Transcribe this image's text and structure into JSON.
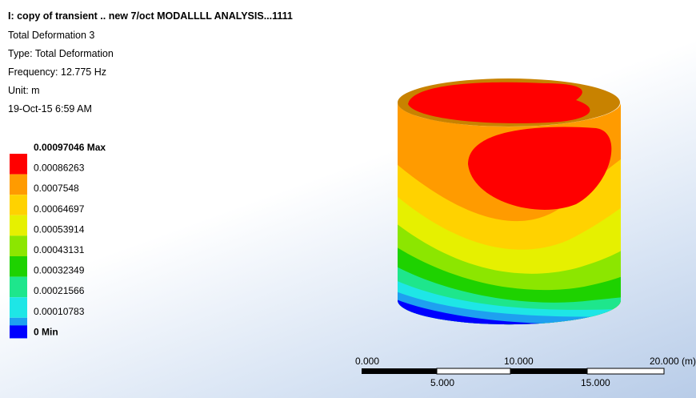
{
  "header": {
    "title": "I: copy of transient .. new 7/oct MODALLLL ANALYSIS...1111",
    "lines": [
      "Total Deformation 3",
      "Type: Total Deformation",
      "Frequency: 12.775 Hz",
      "Unit: m",
      "19-Oct-15 6:59 AM"
    ]
  },
  "legend": {
    "labels": [
      "0.00097046 Max",
      "0.00086263",
      "0.0007548",
      "0.00064697",
      "0.00053914",
      "0.00043131",
      "0.00032349",
      "0.00021566",
      "0.00010783",
      "0 Min"
    ],
    "colors": [
      "#ff0000",
      "#ff9b00",
      "#ffd200",
      "#e6f000",
      "#8ce600",
      "#1ed200",
      "#1ee68c",
      "#1ee6e6",
      "#1ea0f0",
      "#0000ff"
    ]
  },
  "scale_bar": {
    "top_labels": [
      "0.000",
      "10.000",
      "20.000 (m)"
    ],
    "bottom_labels": [
      "5.000",
      "15.000"
    ]
  }
}
